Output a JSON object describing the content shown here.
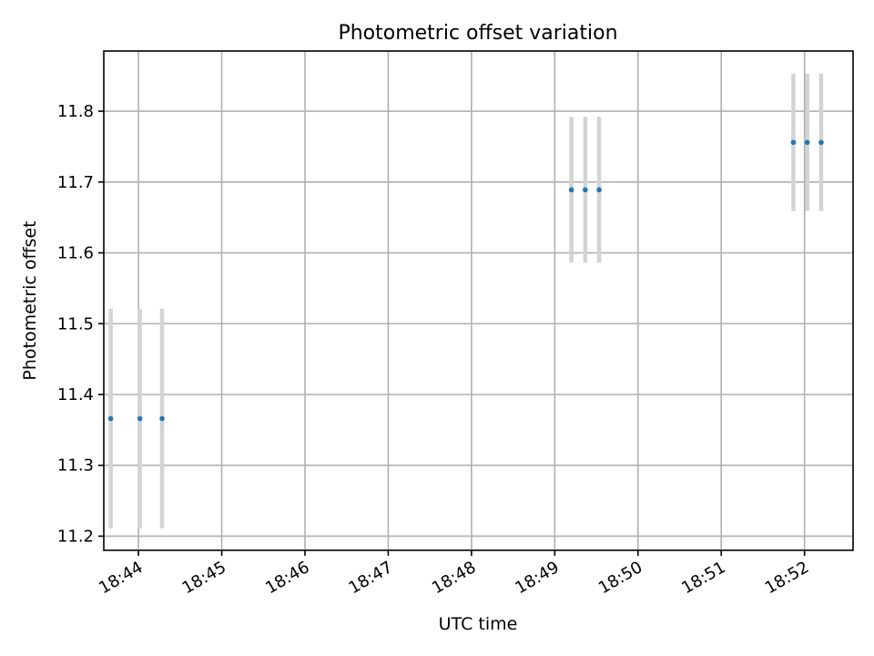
{
  "chart_data": {
    "type": "scatter",
    "title": "Photometric offset variation",
    "xlabel": "UTC time",
    "ylabel": "Photometric offset",
    "x_ticks": [
      "18:44",
      "18:45",
      "18:46",
      "18:47",
      "18:48",
      "18:49",
      "18:50",
      "18:51",
      "18:52"
    ],
    "y_ticks": [
      "11.2",
      "11.3",
      "11.4",
      "11.5",
      "11.6",
      "11.7",
      "11.8"
    ],
    "xlim": [
      "18:43:35",
      "18:52:35"
    ],
    "ylim": [
      11.18,
      11.885
    ],
    "grid": true,
    "marker_color": "#1f77b4",
    "errorbar_color": "#d3d3d3",
    "points": [
      {
        "x": "18:43:40",
        "y": 11.366,
        "yerr": 0.155
      },
      {
        "x": "18:44:01",
        "y": 11.366,
        "yerr": 0.155
      },
      {
        "x": "18:44:17",
        "y": 11.366,
        "yerr": 0.155
      },
      {
        "x": "18:49:12",
        "y": 11.689,
        "yerr": 0.103
      },
      {
        "x": "18:49:22",
        "y": 11.689,
        "yerr": 0.103
      },
      {
        "x": "18:49:32",
        "y": 11.689,
        "yerr": 0.103
      },
      {
        "x": "18:51:52",
        "y": 11.756,
        "yerr": 0.097
      },
      {
        "x": "18:52:02",
        "y": 11.756,
        "yerr": 0.097
      },
      {
        "x": "18:52:12",
        "y": 11.756,
        "yerr": 0.097
      }
    ]
  }
}
